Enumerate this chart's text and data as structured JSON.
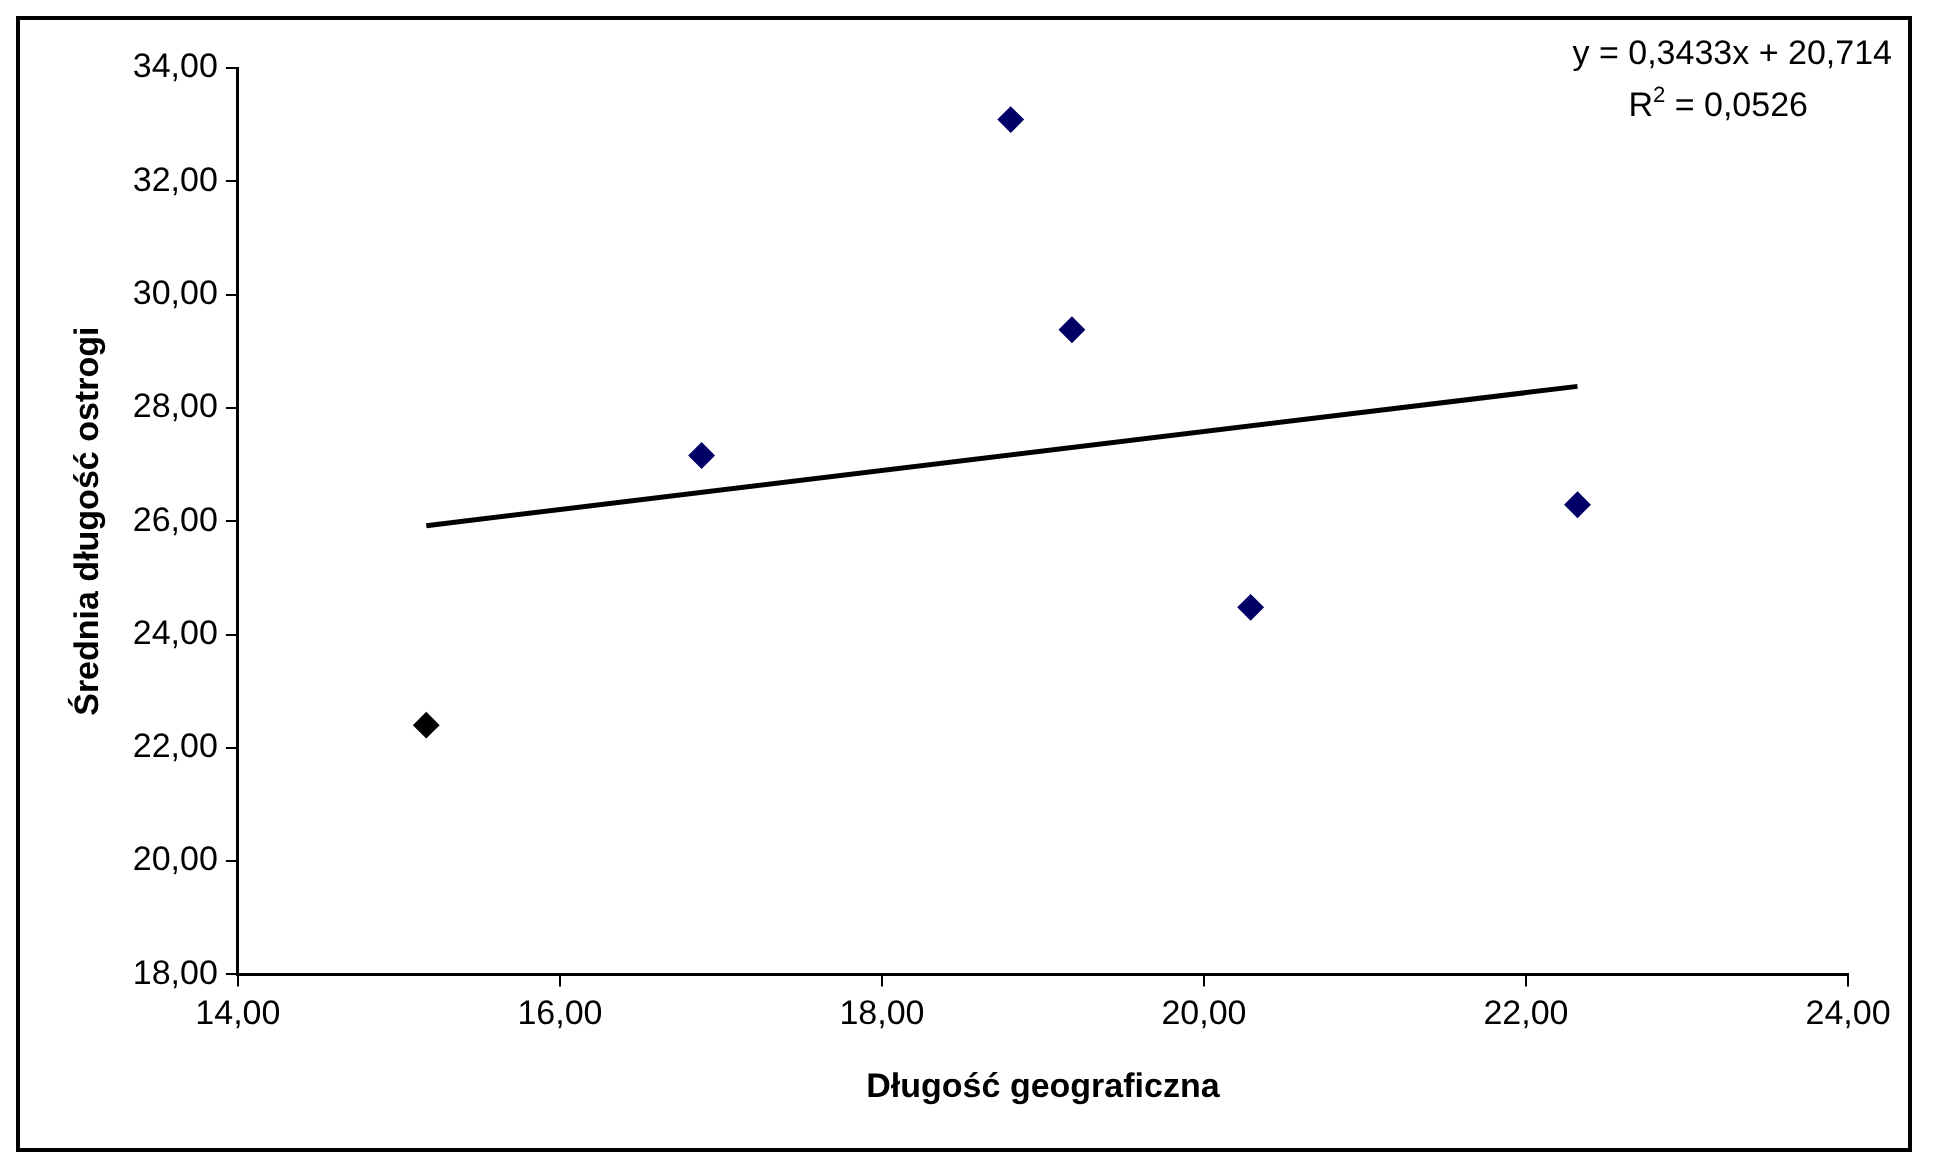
{
  "chart_data": {
    "type": "scatter",
    "xlabel": "Długość geograficzna",
    "ylabel": "Średnia długość ostrogi",
    "annotations": [
      "y = 0,3433x + 20,714",
      "R$^{2}$ = 0,0526"
    ],
    "series": [
      {
        "type": "scatter",
        "x": [
          15.17,
          16.88,
          18.8,
          19.18,
          20.29,
          22.32
        ],
        "values": [
          22.4,
          27.16,
          33.09,
          29.38,
          24.48,
          26.29
        ],
        "colors": [
          "#000000",
          "#000066",
          "#000066",
          "#000066",
          "#000066",
          "#000066"
        ],
        "marker": "diamond"
      },
      {
        "type": "line",
        "x": [
          15.17,
          22.32
        ],
        "values": [
          25.92,
          28.38
        ],
        "color": "#000000",
        "marker": "none",
        "line_style": "solid"
      }
    ],
    "xlim": [
      14,
      24
    ],
    "xticks": [
      {
        "value": 14,
        "label": "14,00"
      },
      {
        "value": 16,
        "label": "16,00"
      },
      {
        "value": 18,
        "label": "18,00"
      },
      {
        "value": 20,
        "label": "20,00"
      },
      {
        "value": 22,
        "label": "22,00"
      },
      {
        "value": 24,
        "label": "24,00"
      }
    ],
    "ylim": [
      18,
      34
    ],
    "yticks": [
      {
        "value": 18,
        "label": "18,00"
      },
      {
        "value": 20,
        "label": "20,00"
      },
      {
        "value": 22,
        "label": "22,00"
      },
      {
        "value": 24,
        "label": "24,00"
      },
      {
        "value": 26,
        "label": "26,00"
      },
      {
        "value": 28,
        "label": "28,00"
      },
      {
        "value": 30,
        "label": "30,00"
      },
      {
        "value": 32,
        "label": "32,00"
      },
      {
        "value": 34,
        "label": "34,00"
      }
    ],
    "grid": false,
    "legend": false
  }
}
